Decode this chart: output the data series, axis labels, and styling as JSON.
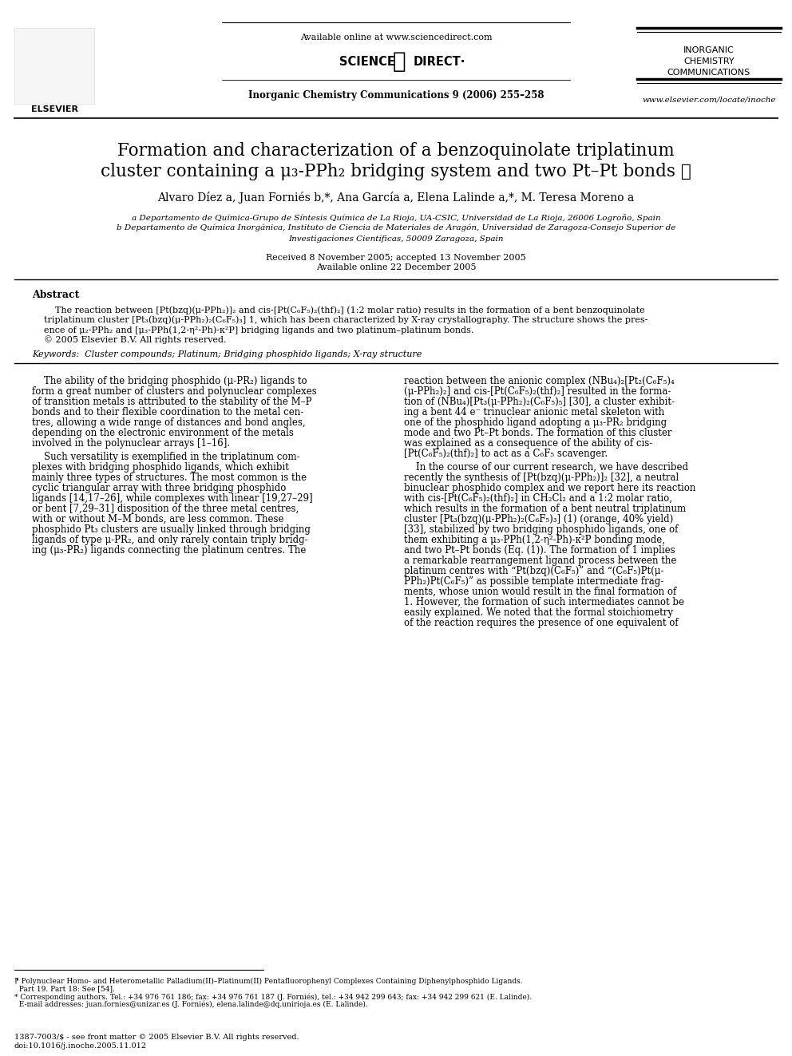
{
  "bg_color": "#ffffff",
  "header": {
    "available_online": "Available online at www.sciencedirect.com",
    "journal_info": "Inorganic Chemistry Communications 9 (2006) 255–258",
    "journal_name_line1": "INORGANIC",
    "journal_name_line2": "CHEMISTRY",
    "journal_name_line3": "COMMUNICATIONS",
    "website": "www.elsevier.com/locate/inoche",
    "elsevier": "ELSEVIER"
  },
  "title_line1": "Formation and characterization of a benzoquinolate triplatinum",
  "title_line2": "cluster containing a μ₃-PPh₂ bridging system and two Pt–Pt bonds ☆",
  "authors": "Alvaro Díez a, Juan Forniés b,*, Ana García a, Elena Lalinde a,*, M. Teresa Moreno a",
  "affil_a": "a Departamento de Química-Grupo de Síntesis Química de La Rioja, UA-CSIC, Universidad de La Rioja, 26006 Logroño, Spain",
  "affil_b": "b Departamento de Química Inorgánica, Instituto de Ciencia de Materiales de Aragón, Universidad de Zaragoza-Consejo Superior de",
  "affil_b2": "Investigaciones Científicas, 50009 Zaragoza, Spain",
  "received": "Received 8 November 2005; accepted 13 November 2005",
  "available": "Available online 22 December 2005",
  "abstract_title": "Abstract",
  "keywords_text": "Keywords:  Cluster compounds; Platinum; Bridging phosphido ligands; X-ray structure",
  "abstract_lines": [
    "    The reaction between [Pt(bzq)(μ-PPh₂)]₂ and cis-[Pt(C₆F₅)₂(thf)₂] (1:2 molar ratio) results in the formation of a bent benzoquinolate",
    "triplatinum cluster [Pt₃(bzq)(μ-PPh₂)₂(C₆F₅)₃] 1, which has been characterized by X-ray crystallography. The structure shows the pres-",
    "ence of μ₂-PPh₂ and [μ₃-PPh(1,2-η²-Ph)-κ²P] bridging ligands and two platinum–platinum bonds.",
    "© 2005 Elsevier B.V. All rights reserved."
  ],
  "col1_lines": [
    "    The ability of the bridging phosphido (μ-PR₂) ligands to",
    "form a great number of clusters and polynuclear complexes",
    "of transition metals is attributed to the stability of the M–P",
    "bonds and to their flexible coordination to the metal cen-",
    "tres, allowing a wide range of distances and bond angles,",
    "depending on the electronic environment of the metals",
    "involved in the polynuclear arrays [1–16].",
    "",
    "    Such versatility is exemplified in the triplatinum com-",
    "plexes with bridging phosphido ligands, which exhibit",
    "mainly three types of structures. The most common is the",
    "cyclic triangular array with three bridging phosphido",
    "ligands [14,17–26], while complexes with linear [19,27–29]",
    "or bent [7,29–31] disposition of the three metal centres,",
    "with or without M–M bonds, are less common. These",
    "phosphido Pt₃ clusters are usually linked through bridging",
    "ligands of type μ-PR₂, and only rarely contain triply bridg-",
    "ing (μ₃-PR₂) ligands connecting the platinum centres. The"
  ],
  "col2_lines": [
    "reaction between the anionic complex (NBu₄)₂[Pt₂(C₆F₅)₄",
    "(μ-PPh₂)₂] and cis-[Pt(C₆F₅)₂(thf)₂] resulted in the forma-",
    "tion of (NBu₄)[Pt₃(μ-PPh₂)₂(C₆F₅)₅] [30], a cluster exhibit-",
    "ing a bent 44 e⁻ trinuclear anionic metal skeleton with",
    "one of the phosphido ligand adopting a μ₃-PR₂ bridging",
    "mode and two Pt–Pt bonds. The formation of this cluster",
    "was explained as a consequence of the ability of cis-",
    "[Pt(C₆F₅)₂(thf)₂] to act as a C₆F₅ scavenger.",
    "",
    "    In the course of our current research, we have described",
    "recently the synthesis of [Pt(bzq)(μ-PPh₂)]₂ [32], a neutral",
    "binuclear phosphido complex and we report here its reaction",
    "with cis-[Pt(C₆F₅)₂(thf)₂] in CH₂Cl₂ and a 1:2 molar ratio,",
    "which results in the formation of a bent neutral triplatinum",
    "cluster [Pt₃(bzq)(μ-PPh₂)₂(C₆F₅)₃] (1) (orange, 40% yield)",
    "[33], stabilized by two bridging phosphido ligands, one of",
    "them exhibiting a μ₃-PPh(1,2-η²-Ph)-κ²P bonding mode,",
    "and two Pt–Pt bonds (Eq. (1)). The formation of 1 implies",
    "a remarkable rearrangement ligand process between the",
    "platinum centres with “Pt(bzq)(C₆F₅)” and “(C₆F₅)Pt(μ-",
    "PPh₂)Pt(C₆F₅)” as possible template intermediate frag-",
    "ments, whose union would result in the final formation of",
    "1. However, the formation of such intermediates cannot be",
    "easily explained. We noted that the formal stoichiometry",
    "of the reaction requires the presence of one equivalent of"
  ],
  "footnote_lines": [
    "⁋ Polynuclear Homo- and Heterometallic Palladium(II)–Platinum(II) Pentafluorophenyl Complexes Containing Diphenylphosphido Ligands.",
    "  Part 19. Part 18: See [54].",
    "* Corresponding authors. Tel.: +34 976 761 186; fax: +34 976 761 187 (J. Forniés), tel.: +34 942 299 643; fax: +34 942 299 621 (E. Lalinde).",
    "  E-mail addresses: juan.fornies@unizar.es (J. Forniés), elena.lalinde@dq.unirioja.es (E. Lalinde)."
  ],
  "bottom_ref1": "1387-7003/$ - see front matter © 2005 Elsevier B.V. All rights reserved.",
  "bottom_ref2": "doi:10.1016/j.inoche.2005.11.012"
}
